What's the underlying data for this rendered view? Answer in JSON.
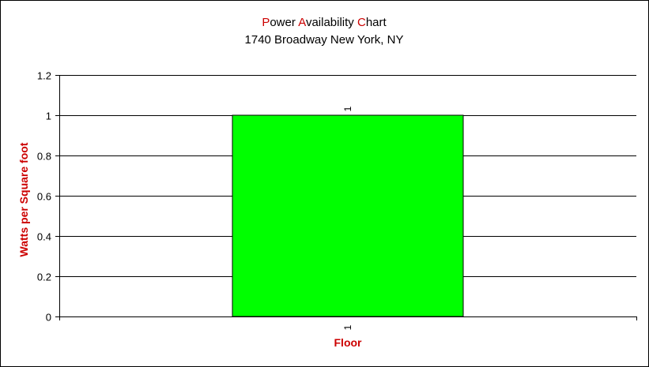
{
  "chart_data": {
    "type": "bar",
    "title_parts": [
      {
        "text": "P",
        "accent": true
      },
      {
        "text": "ower ",
        "accent": false
      },
      {
        "text": "A",
        "accent": true
      },
      {
        "text": "vailability ",
        "accent": false
      },
      {
        "text": "C",
        "accent": true
      },
      {
        "text": "hart",
        "accent": false
      }
    ],
    "subtitle": "1740 Broadway New York, NY",
    "xlabel": "Floor",
    "ylabel": "Watts per Square foot",
    "categories": [
      "1"
    ],
    "values": [
      1
    ],
    "data_labels": [
      "1"
    ],
    "ylim": [
      0,
      1.2
    ],
    "yticks": [
      0,
      0.2,
      0.4,
      0.6,
      0.8,
      1,
      1.2
    ],
    "ytick_labels": [
      "0",
      "0.2",
      "0.4",
      "0.6",
      "0.8",
      "1",
      "1.2"
    ],
    "grid": true,
    "legend": "none",
    "colors": {
      "bar": "#00ff00",
      "accent": "#cc0000",
      "axis_label": "#cc0000",
      "text": "#000000",
      "grid": "#000000"
    }
  }
}
